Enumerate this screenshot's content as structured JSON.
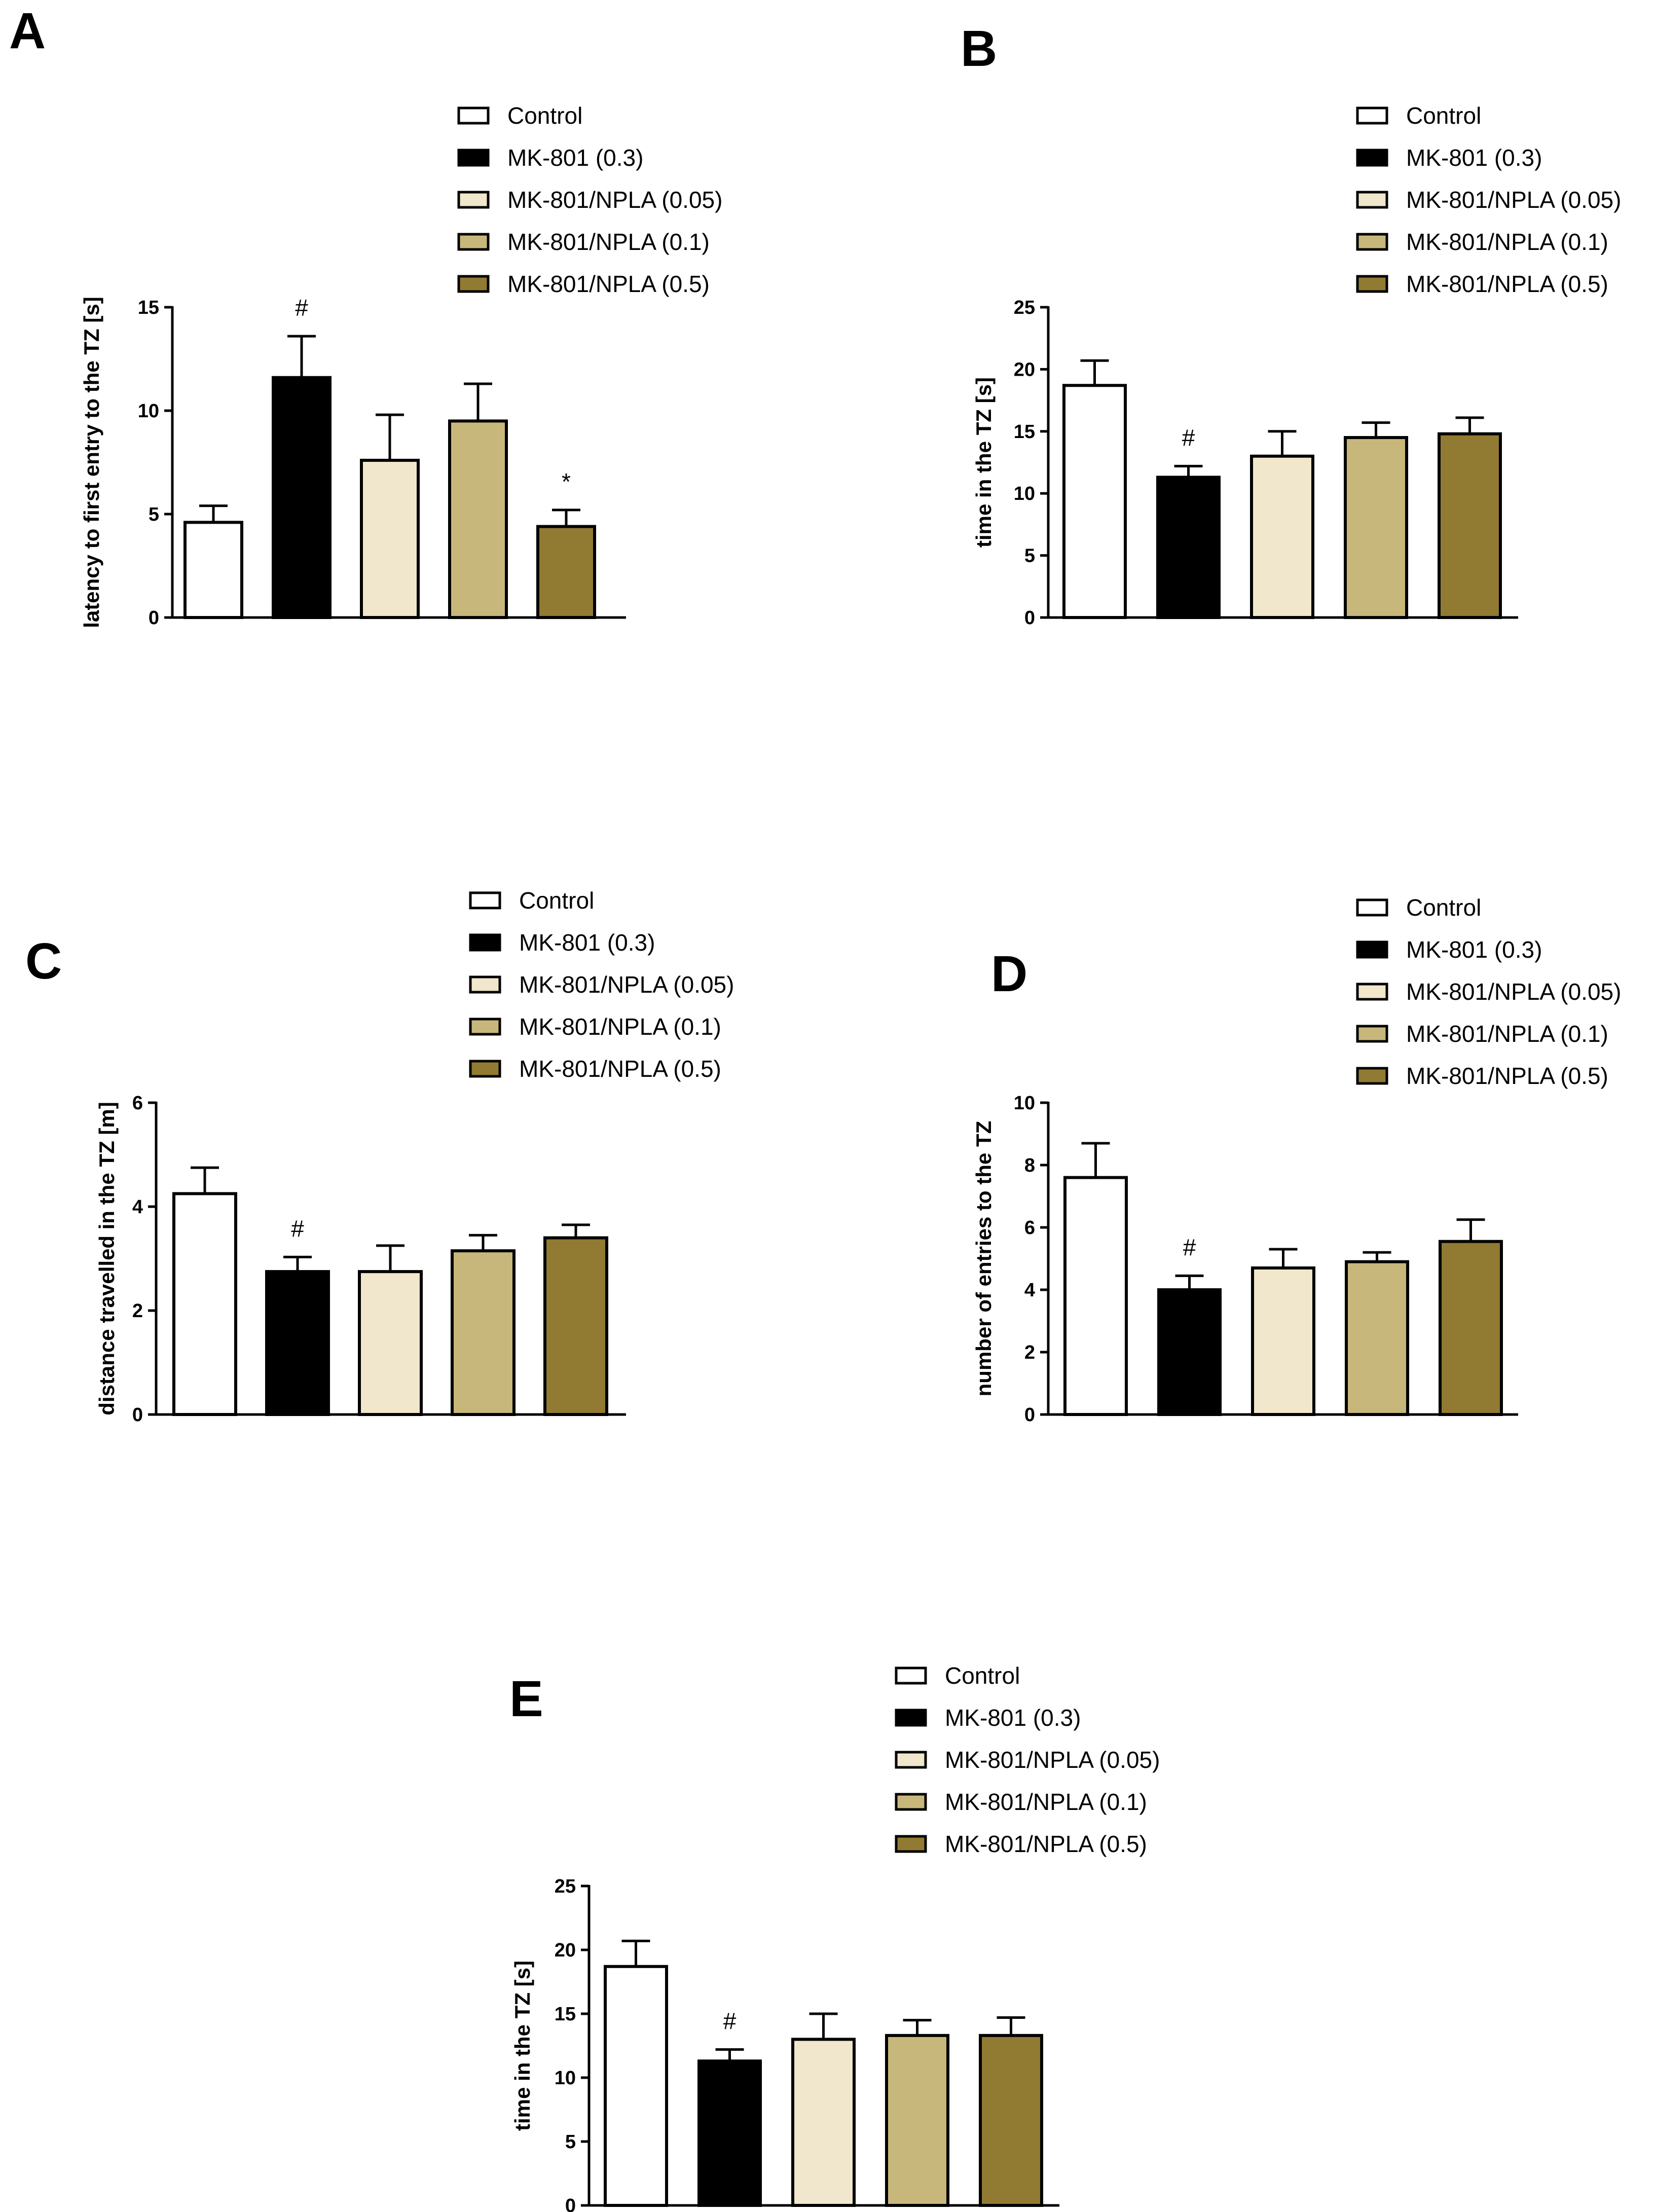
{
  "colors": {
    "Control": "#ffffff",
    "MK-801 (0.3)": "#000000",
    "MK-801/NPLA (0.05)": "#f0e7cc",
    "MK-801/NPLA (0.1)": "#c8b77a",
    "MK-801/NPLA (0.5)": "#917a32",
    "stroke": "#000000"
  },
  "chart_data": [
    {
      "id": "A",
      "type": "bar",
      "panel_label": "A",
      "categories": [
        "Control",
        "MK-801 (0.3)",
        "MK-801/NPLA (0.05)",
        "MK-801/NPLA (0.1)",
        "MK-801/NPLA (0.5)"
      ],
      "legend": [
        "Control",
        "MK-801 (0.3)",
        "MK-801/NPLA (0.05)",
        "MK-801/NPLA (0.1)",
        "MK-801/NPLA (0.5)"
      ],
      "values": [
        4.6,
        11.6,
        7.6,
        9.5,
        4.4
      ],
      "errors": [
        0.8,
        2.0,
        2.2,
        1.8,
        0.8
      ],
      "annotations": [
        "",
        "#",
        "",
        "",
        "*"
      ],
      "ylabel": "latency to first entry to the TZ [s]",
      "ylim": [
        0,
        15
      ],
      "yticks": [
        0,
        5,
        10,
        15
      ],
      "xlabel": "",
      "legend_position": "top-right"
    },
    {
      "id": "B",
      "type": "bar",
      "panel_label": "B",
      "categories": [
        "Control",
        "MK-801 (0.3)",
        "MK-801/NPLA (0.05)",
        "MK-801/NPLA (0.1)",
        "MK-801/NPLA (0.5)"
      ],
      "legend": [
        "Control",
        "MK-801 (0.3)",
        "MK-801/NPLA (0.05)",
        "MK-801/NPLA (0.1)",
        "MK-801/NPLA (0.5)"
      ],
      "values": [
        18.7,
        11.3,
        13.0,
        14.5,
        14.8
      ],
      "errors": [
        2.0,
        0.9,
        2.0,
        1.2,
        1.3
      ],
      "annotations": [
        "",
        "#",
        "",
        "",
        ""
      ],
      "ylabel": "time in the TZ [s]",
      "ylim": [
        0,
        25
      ],
      "yticks": [
        0,
        5,
        10,
        15,
        20,
        25
      ],
      "xlabel": "",
      "legend_position": "top-right"
    },
    {
      "id": "C",
      "type": "bar",
      "panel_label": "C",
      "categories": [
        "Control",
        "MK-801 (0.3)",
        "MK-801/NPLA (0.05)",
        "MK-801/NPLA (0.1)",
        "MK-801/NPLA (0.5)"
      ],
      "legend": [
        "Control",
        "MK-801 (0.3)",
        "MK-801/NPLA (0.05)",
        "MK-801/NPLA (0.1)",
        "MK-801/NPLA (0.5)"
      ],
      "values": [
        4.25,
        2.75,
        2.75,
        3.15,
        3.4
      ],
      "errors": [
        0.5,
        0.28,
        0.5,
        0.3,
        0.25
      ],
      "annotations": [
        "",
        "#",
        "",
        "",
        ""
      ],
      "ylabel": "distance travelled in the TZ [m]",
      "ylim": [
        0,
        6
      ],
      "yticks": [
        0,
        2,
        4,
        6
      ],
      "xlabel": "",
      "legend_position": "top-right"
    },
    {
      "id": "D",
      "type": "bar",
      "panel_label": "D",
      "categories": [
        "Control",
        "MK-801 (0.3)",
        "MK-801/NPLA (0.05)",
        "MK-801/NPLA (0.1)",
        "MK-801/NPLA (0.5)"
      ],
      "legend": [
        "Control",
        "MK-801 (0.3)",
        "MK-801/NPLA (0.05)",
        "MK-801/NPLA (0.1)",
        "MK-801/NPLA (0.5)"
      ],
      "values": [
        7.6,
        4.0,
        4.7,
        4.9,
        5.55
      ],
      "errors": [
        1.1,
        0.45,
        0.6,
        0.3,
        0.7
      ],
      "annotations": [
        "",
        "#",
        "",
        "",
        ""
      ],
      "ylabel": "number of entries to the TZ",
      "ylim": [
        0,
        10
      ],
      "yticks": [
        0,
        2,
        4,
        6,
        8,
        10
      ],
      "xlabel": "",
      "legend_position": "top-right"
    },
    {
      "id": "E",
      "type": "bar",
      "panel_label": "E",
      "categories": [
        "Control",
        "MK-801 (0.3)",
        "MK-801/NPLA (0.05)",
        "MK-801/NPLA (0.1)",
        "MK-801/NPLA (0.5)"
      ],
      "legend": [
        "Control",
        "MK-801 (0.3)",
        "MK-801/NPLA (0.05)",
        "MK-801/NPLA (0.1)",
        "MK-801/NPLA (0.5)"
      ],
      "values": [
        18.7,
        11.3,
        13.0,
        13.3,
        13.3
      ],
      "errors": [
        2.0,
        0.9,
        2.0,
        1.2,
        1.4
      ],
      "annotations": [
        "",
        "#",
        "",
        "",
        ""
      ],
      "ylabel": "time in the TZ [s]",
      "ylim": [
        0,
        25
      ],
      "yticks": [
        0,
        5,
        10,
        15,
        20,
        25
      ],
      "xlabel": "",
      "legend_position": "top-right"
    }
  ]
}
